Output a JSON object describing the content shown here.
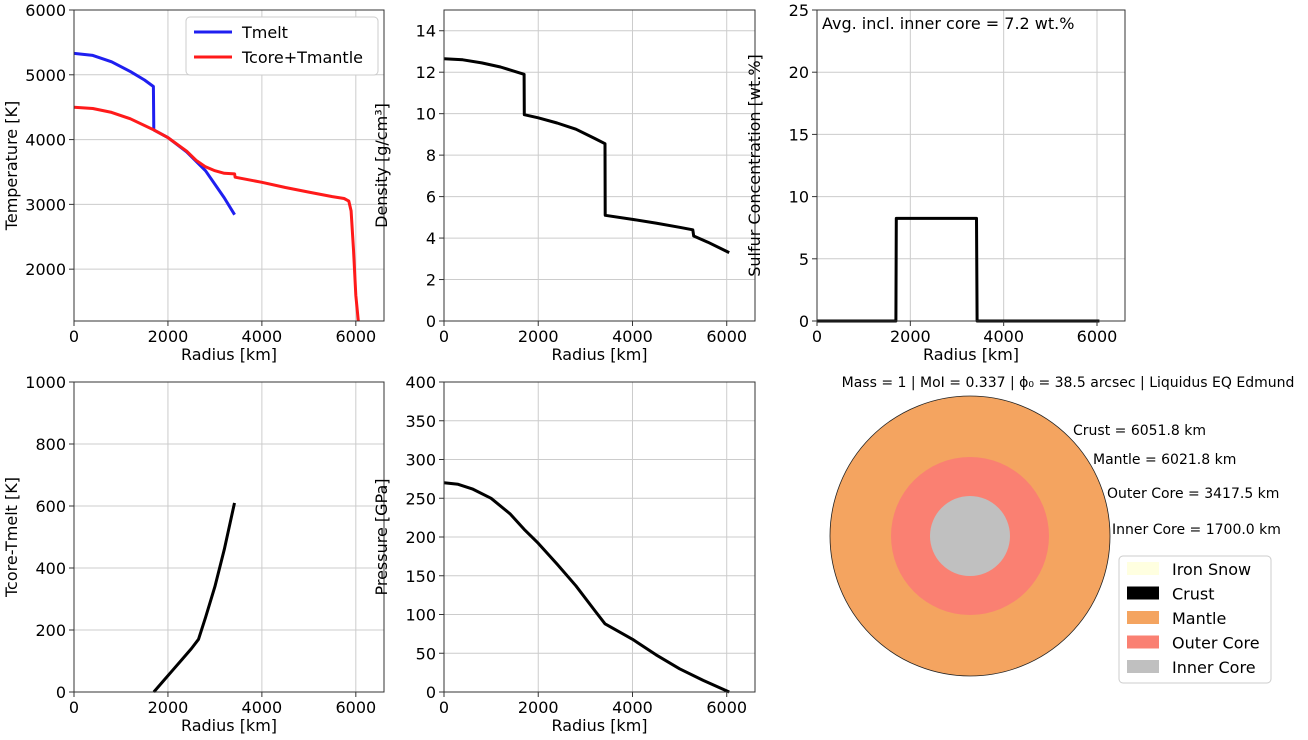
{
  "panels": [
    {
      "id": "temperature",
      "xlabel": "Radius [km]",
      "ylabel": "Temperature [K]",
      "xlim": [
        0,
        6600
      ],
      "ylim": [
        1200,
        6000
      ],
      "xticks": [
        0,
        2000,
        4000,
        6000
      ],
      "yticks": [
        2000,
        3000,
        4000,
        5000,
        6000
      ],
      "legend": {
        "position": "top-right",
        "entries": [
          {
            "label": "Tmelt",
            "color": "#1f1ff0"
          },
          {
            "label": "Tcore+Tmantle",
            "color": "#ff1a1a"
          }
        ]
      }
    },
    {
      "id": "density",
      "xlabel": "Radius [km]",
      "ylabel": "Density [g/cm³]",
      "xlim": [
        0,
        6600
      ],
      "ylim": [
        0,
        15
      ],
      "xticks": [
        0,
        2000,
        4000,
        6000
      ],
      "yticks": [
        0,
        2,
        4,
        6,
        8,
        10,
        12,
        14
      ]
    },
    {
      "id": "sulfur",
      "xlabel": "Radius [km]",
      "ylabel": "Sulfur Concentration [wt.%]",
      "xlim": [
        0,
        6600
      ],
      "ylim": [
        0,
        25
      ],
      "xticks": [
        0,
        2000,
        4000,
        6000
      ],
      "yticks": [
        0,
        5,
        10,
        15,
        20,
        25
      ],
      "annotation": "Avg. incl. inner core = 7.2 wt.%"
    },
    {
      "id": "tcore_tmelt",
      "xlabel": "Radius [km]",
      "ylabel": "Tcore-Tmelt [K]",
      "xlim": [
        0,
        6600
      ],
      "ylim": [
        0,
        1000
      ],
      "xticks": [
        0,
        2000,
        4000,
        6000
      ],
      "yticks": [
        0,
        200,
        400,
        600,
        800,
        1000
      ]
    },
    {
      "id": "pressure",
      "xlabel": "Radius [km]",
      "ylabel": "Pressure [GPa]",
      "xlim": [
        0,
        6600
      ],
      "ylim": [
        0,
        400
      ],
      "xticks": [
        0,
        2000,
        4000,
        6000
      ],
      "yticks": [
        0,
        50,
        100,
        150,
        200,
        250,
        300,
        350,
        400
      ]
    }
  ],
  "structure_panel": {
    "title": "Mass = 1 | MoI = 0.337 | ϕ₀ = 38.5 arcsec | Liquidus EQ Edmund",
    "labels": [
      "Crust = 6051.8 km",
      "Mantle = 6021.8 km",
      "Outer Core = 3417.5 km",
      "Inner Core = 1700.0 km"
    ],
    "legend": [
      {
        "label": "Iron Snow",
        "color": "#ffffe0"
      },
      {
        "label": "Crust",
        "color": "#000000"
      },
      {
        "label": "Mantle",
        "color": "#f4a460"
      },
      {
        "label": "Outer Core",
        "color": "#fa8072"
      },
      {
        "label": "Inner Core",
        "color": "#c0c0c0"
      }
    ]
  },
  "chart_data": [
    {
      "type": "line",
      "title": "",
      "xlabel": "Radius [km]",
      "ylabel": "Temperature [K]",
      "series": [
        {
          "name": "Tmelt",
          "color": "#1f1ff0",
          "points": [
            [
              0,
              5330
            ],
            [
              400,
              5300
            ],
            [
              800,
              5200
            ],
            [
              1200,
              5050
            ],
            [
              1500,
              4920
            ],
            [
              1690,
              4820
            ],
            [
              1700,
              4150
            ],
            [
              2000,
              4030
            ],
            [
              2400,
              3810
            ],
            [
              2800,
              3520
            ],
            [
              3200,
              3100
            ],
            [
              3420,
              2840
            ]
          ]
        },
        {
          "name": "Tcore+Tmantle",
          "color": "#ff1a1a",
          "points": [
            [
              0,
              4500
            ],
            [
              400,
              4480
            ],
            [
              800,
              4420
            ],
            [
              1200,
              4320
            ],
            [
              1700,
              4150
            ],
            [
              2000,
              4030
            ],
            [
              2400,
              3820
            ],
            [
              2600,
              3680
            ],
            [
              2800,
              3580
            ],
            [
              3000,
              3520
            ],
            [
              3200,
              3480
            ],
            [
              3420,
              3470
            ],
            [
              3430,
              3420
            ],
            [
              4000,
              3340
            ],
            [
              4500,
              3260
            ],
            [
              5000,
              3190
            ],
            [
              5500,
              3120
            ],
            [
              5750,
              3090
            ],
            [
              5850,
              3050
            ],
            [
              5900,
              2900
            ],
            [
              5950,
              2300
            ],
            [
              6000,
              1600
            ],
            [
              6051.8,
              1200
            ]
          ]
        }
      ]
    },
    {
      "type": "line",
      "title": "",
      "xlabel": "Radius [km]",
      "ylabel": "Density [g/cm³]",
      "series": [
        {
          "color": "#000000",
          "points": [
            [
              0,
              12.65
            ],
            [
              400,
              12.6
            ],
            [
              800,
              12.45
            ],
            [
              1200,
              12.25
            ],
            [
              1700,
              11.9
            ],
            [
              1705,
              9.95
            ],
            [
              2000,
              9.8
            ],
            [
              2400,
              9.55
            ],
            [
              2800,
              9.25
            ],
            [
              3200,
              8.8
            ],
            [
              3417,
              8.55
            ],
            [
              3420,
              5.1
            ],
            [
              4000,
              4.9
            ],
            [
              4500,
              4.72
            ],
            [
              5000,
              4.52
            ],
            [
              5280,
              4.4
            ],
            [
              5300,
              4.1
            ],
            [
              5600,
              3.8
            ],
            [
              6051.8,
              3.3
            ]
          ]
        }
      ]
    },
    {
      "type": "line",
      "title": "",
      "xlabel": "Radius [km]",
      "ylabel": "Sulfur Concentration [wt.%]",
      "series": [
        {
          "color": "#000000",
          "points": [
            [
              0,
              0
            ],
            [
              1690,
              0
            ],
            [
              1700,
              8.25
            ],
            [
              3417,
              8.25
            ],
            [
              3430,
              0
            ],
            [
              6051.8,
              0
            ]
          ]
        }
      ]
    },
    {
      "type": "line",
      "title": "",
      "xlabel": "Radius [km]",
      "ylabel": "Tcore-Tmelt [K]",
      "series": [
        {
          "color": "#000000",
          "points": [
            [
              1700,
              0
            ],
            [
              1900,
              35
            ],
            [
              2100,
              70
            ],
            [
              2300,
              105
            ],
            [
              2500,
              140
            ],
            [
              2650,
              170
            ],
            [
              2800,
              240
            ],
            [
              3000,
              340
            ],
            [
              3200,
              460
            ],
            [
              3417,
              610
            ]
          ]
        }
      ]
    },
    {
      "type": "line",
      "title": "",
      "xlabel": "Radius [km]",
      "ylabel": "Pressure [GPa]",
      "series": [
        {
          "color": "#000000",
          "points": [
            [
              0,
              270
            ],
            [
              300,
              268
            ],
            [
              600,
              262
            ],
            [
              1000,
              250
            ],
            [
              1400,
              230
            ],
            [
              1700,
              210
            ],
            [
              2000,
              192
            ],
            [
              2400,
              165
            ],
            [
              2800,
              137
            ],
            [
              3200,
              105
            ],
            [
              3417,
              88
            ],
            [
              4000,
              68
            ],
            [
              4500,
              48
            ],
            [
              5000,
              30
            ],
            [
              5500,
              15
            ],
            [
              6051.8,
              0
            ]
          ]
        }
      ]
    }
  ]
}
